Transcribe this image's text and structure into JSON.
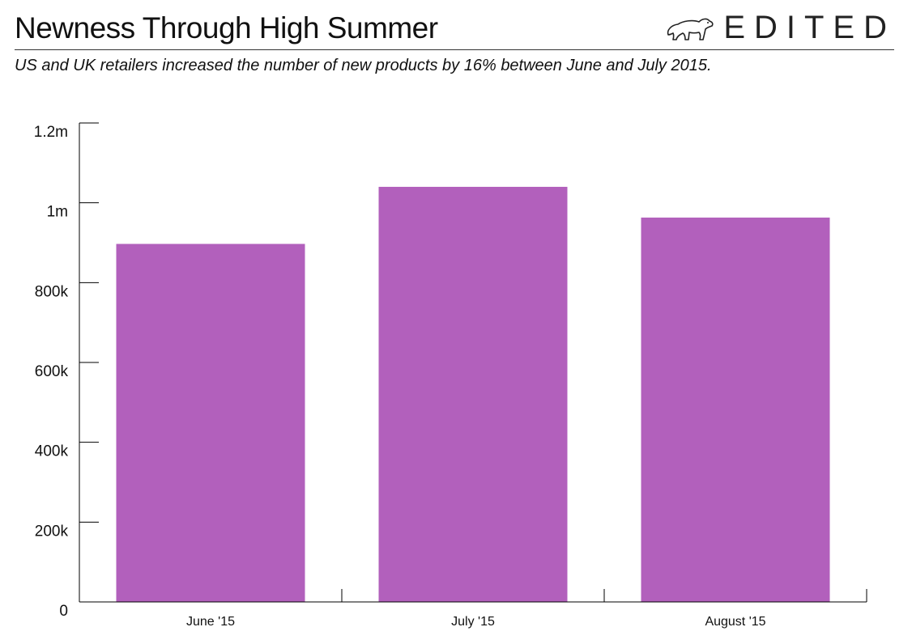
{
  "header": {
    "title": "Newness Through High Summer",
    "subtitle": "US and UK retailers increased the number of new products by 16% between June and July 2015.",
    "brand": "EDITED"
  },
  "chart_data": {
    "type": "bar",
    "categories": [
      "June '15",
      "July '15",
      "August '15"
    ],
    "values": [
      897000,
      1040000,
      963000
    ],
    "ylim": [
      0,
      1200000
    ],
    "yticks": [
      0,
      200000,
      400000,
      600000,
      800000,
      1000000,
      1200000
    ],
    "ytick_labels": [
      "0",
      "200k",
      "400k",
      "600k",
      "800k",
      "1m",
      "1.2m"
    ],
    "bar_color": "#b260bc",
    "grid": false,
    "legend": "none"
  }
}
